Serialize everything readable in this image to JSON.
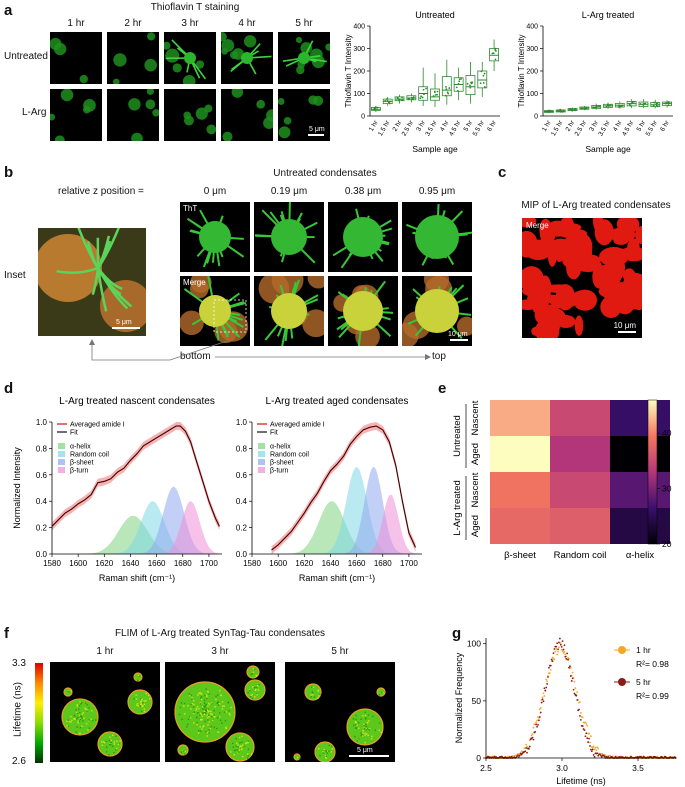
{
  "panel_letters": {
    "a": "a",
    "b": "b",
    "c": "c",
    "d": "d",
    "e": "e",
    "f": "f",
    "g": "g"
  },
  "a": {
    "title": "Thioflavin T staining",
    "timepoints": [
      "1 hr",
      "2 hr",
      "3 hr",
      "4 hr",
      "5 hr"
    ],
    "rows": [
      "Untreated",
      "L-Arg"
    ],
    "scalebar": "5 μm"
  },
  "b": {
    "title": "Untreated condensates",
    "z_label": "relative z position =",
    "z_values": [
      "0 μm",
      "0.19 μm",
      "0.38 μm",
      "0.95 μm"
    ],
    "row_tags": [
      "ThT",
      "Merge"
    ],
    "inset_label": "Inset",
    "inset_scalebar": "5 μm",
    "scalebar": "10 μm",
    "bottom": "bottom",
    "top": "top"
  },
  "c": {
    "title": "MIP of L-Arg treated condensates",
    "tag": "Merge",
    "scalebar": "10 μm"
  },
  "d": {
    "ylabel": "Normalized Intensity",
    "xlabel": "Raman shift (cm⁻¹)",
    "legend": [
      "Averaged amide I",
      "Fit",
      "α-helix",
      "Random coil",
      "β-sheet",
      "β-turn"
    ]
  },
  "e": {
    "row_groups": [
      "Untreated",
      "L-Arg treated"
    ],
    "row_labels": [
      "Nascent",
      "Aged",
      "Nascent",
      "Aged"
    ],
    "colorbar_ticks": [
      "20",
      "30",
      "40"
    ]
  },
  "f": {
    "title": "FLIM of L-Arg treated SynTag-Tau condensates",
    "timepoints": [
      "1 hr",
      "3 hr",
      "5 hr"
    ],
    "cbar_label": "Lifetime (ns)",
    "cbar_max": "3.3",
    "cbar_min": "2.6",
    "scalebar": "5 μm"
  },
  "chart_data": [
    {
      "id": "a-untreated",
      "type": "box",
      "title": "Untreated",
      "xlabel": "Sample age",
      "ylabel": "Thioflavin T Intensity",
      "categories": [
        "1 hr",
        "1.5 hr",
        "2 hr",
        "2.5 hr",
        "3 hr",
        "3.5 hr",
        "4 hr",
        "4.5 hr",
        "5 hr",
        "5.5 hr",
        "6 hr"
      ],
      "medians": [
        30,
        65,
        75,
        80,
        100,
        85,
        115,
        140,
        130,
        160,
        270
      ],
      "q1": [
        25,
        55,
        68,
        72,
        70,
        70,
        90,
        110,
        95,
        125,
        245
      ],
      "q3": [
        38,
        75,
        85,
        90,
        130,
        120,
        175,
        170,
        180,
        200,
        300
      ],
      "whisker_low": [
        18,
        45,
        55,
        60,
        45,
        40,
        50,
        70,
        55,
        85,
        200
      ],
      "whisker_high": [
        45,
        85,
        95,
        100,
        215,
        190,
        250,
        215,
        240,
        240,
        340
      ],
      "ylim": [
        0,
        400
      ],
      "yticks": [
        0,
        100,
        200,
        300,
        400
      ]
    },
    {
      "id": "a-larg",
      "type": "box",
      "title": "L-Arg treated",
      "xlabel": "Sample age",
      "ylabel": "Thioflavin T Intensity",
      "categories": [
        "1 hr",
        "1.5 hr",
        "2 hr",
        "2.5 hr",
        "3 hr",
        "3.5 hr",
        "4 hr",
        "4.5 hr",
        "5 hr",
        "5.5 hr",
        "6 hr"
      ],
      "medians": [
        20,
        22,
        28,
        35,
        40,
        45,
        48,
        55,
        52,
        50,
        55
      ],
      "q1": [
        16,
        18,
        24,
        30,
        34,
        38,
        40,
        45,
        42,
        42,
        46
      ],
      "q3": [
        24,
        27,
        33,
        40,
        47,
        52,
        56,
        65,
        62,
        60,
        62
      ],
      "whisker_low": [
        12,
        14,
        20,
        26,
        28,
        32,
        33,
        35,
        35,
        34,
        38
      ],
      "whisker_high": [
        28,
        32,
        38,
        45,
        55,
        60,
        65,
        75,
        75,
        72,
        70
      ],
      "ylim": [
        0,
        400
      ],
      "yticks": [
        0,
        100,
        200,
        300,
        400
      ]
    },
    {
      "id": "d-nascent",
      "type": "line",
      "title": "L-Arg treated nascent condensates",
      "xlim": [
        1580,
        1710
      ],
      "ylim": [
        0,
        1.0
      ],
      "xticks": [
        1580,
        1600,
        1620,
        1640,
        1660,
        1680,
        1700
      ],
      "yticks": [
        0.0,
        0.2,
        0.4,
        0.6,
        0.8,
        1.0
      ],
      "components": [
        {
          "name": "α-helix",
          "center": 1642,
          "height": 0.29,
          "width": 11,
          "color": "#7fd47f"
        },
        {
          "name": "Random coil",
          "center": 1657,
          "height": 0.4,
          "width": 9,
          "color": "#7fd8e6"
        },
        {
          "name": "β-sheet",
          "center": 1673,
          "height": 0.51,
          "width": 8,
          "color": "#8fa8ee"
        },
        {
          "name": "β-turn",
          "center": 1686,
          "height": 0.4,
          "width": 7,
          "color": "#ee8fd8"
        }
      ],
      "fit_points": [
        [
          1580,
          0.21
        ],
        [
          1585,
          0.26
        ],
        [
          1590,
          0.31
        ],
        [
          1595,
          0.34
        ],
        [
          1600,
          0.38
        ],
        [
          1605,
          0.41
        ],
        [
          1610,
          0.45
        ],
        [
          1615,
          0.54
        ],
        [
          1620,
          0.55
        ],
        [
          1625,
          0.57
        ],
        [
          1630,
          0.62
        ],
        [
          1635,
          0.65
        ],
        [
          1640,
          0.71
        ],
        [
          1645,
          0.76
        ],
        [
          1650,
          0.82
        ],
        [
          1655,
          0.85
        ],
        [
          1660,
          0.88
        ],
        [
          1665,
          0.91
        ],
        [
          1670,
          0.94
        ],
        [
          1675,
          0.97
        ],
        [
          1678,
          0.97
        ],
        [
          1682,
          0.93
        ],
        [
          1686,
          0.85
        ],
        [
          1690,
          0.72
        ],
        [
          1695,
          0.56
        ],
        [
          1700,
          0.4
        ],
        [
          1705,
          0.27
        ],
        [
          1708,
          0.21
        ]
      ]
    },
    {
      "id": "d-aged",
      "type": "line",
      "title": "L-Arg treated aged condensates",
      "xlim": [
        1580,
        1710
      ],
      "ylim": [
        0,
        1.0
      ],
      "xticks": [
        1580,
        1600,
        1620,
        1640,
        1660,
        1680,
        1700
      ],
      "yticks": [
        0.0,
        0.2,
        0.4,
        0.6,
        0.8,
        1.0
      ],
      "components": [
        {
          "name": "α-helix",
          "center": 1641,
          "height": 0.4,
          "width": 10,
          "color": "#7fd47f"
        },
        {
          "name": "Random coil",
          "center": 1660,
          "height": 0.66,
          "width": 8,
          "color": "#7fd8e6"
        },
        {
          "name": "β-sheet",
          "center": 1673,
          "height": 0.66,
          "width": 7,
          "color": "#8fa8ee"
        },
        {
          "name": "β-turn",
          "center": 1686,
          "height": 0.45,
          "width": 6,
          "color": "#ee8fd8"
        }
      ],
      "fit_points": [
        [
          1595,
          0.03
        ],
        [
          1600,
          0.07
        ],
        [
          1605,
          0.12
        ],
        [
          1610,
          0.17
        ],
        [
          1615,
          0.24
        ],
        [
          1620,
          0.31
        ],
        [
          1625,
          0.39
        ],
        [
          1630,
          0.46
        ],
        [
          1635,
          0.55
        ],
        [
          1640,
          0.63
        ],
        [
          1645,
          0.68
        ],
        [
          1650,
          0.74
        ],
        [
          1655,
          0.83
        ],
        [
          1660,
          0.89
        ],
        [
          1665,
          0.94
        ],
        [
          1670,
          0.96
        ],
        [
          1675,
          0.97
        ],
        [
          1680,
          0.94
        ],
        [
          1685,
          0.85
        ],
        [
          1690,
          0.67
        ],
        [
          1695,
          0.4
        ],
        [
          1700,
          0.16
        ],
        [
          1705,
          0.05
        ]
      ]
    },
    {
      "id": "e-heatmap",
      "type": "heatmap",
      "columns": [
        "β-sheet",
        "Random coil",
        "α-helix"
      ],
      "rows": [
        "Untreated Nascent",
        "Untreated Aged",
        "L-Arg treated Nascent",
        "L-Arg treated Aged"
      ],
      "values": [
        [
          42,
          35,
          26
        ],
        [
          46,
          33,
          20
        ],
        [
          39,
          35,
          28
        ],
        [
          38,
          37,
          24
        ]
      ],
      "vmin": 20,
      "vmax": 46
    },
    {
      "id": "g-lifetime",
      "type": "scatter",
      "xlabel": "Lifetime (ns)",
      "ylabel": "Normalized Frequency",
      "xlim": [
        2.5,
        3.75
      ],
      "ylim": [
        0,
        105
      ],
      "xticks": [
        2.5,
        3.0,
        3.5
      ],
      "yticks": [
        0,
        50,
        100
      ],
      "series": [
        {
          "name": "1 hr",
          "r2": "R²= 0.98",
          "color": "#f5a623",
          "center": 2.99,
          "sigma": 0.105,
          "peak": 97
        },
        {
          "name": "5 hr",
          "r2": "R²= 0.99",
          "color": "#8b1a1a",
          "center": 2.985,
          "sigma": 0.095,
          "peak": 100
        }
      ]
    }
  ]
}
